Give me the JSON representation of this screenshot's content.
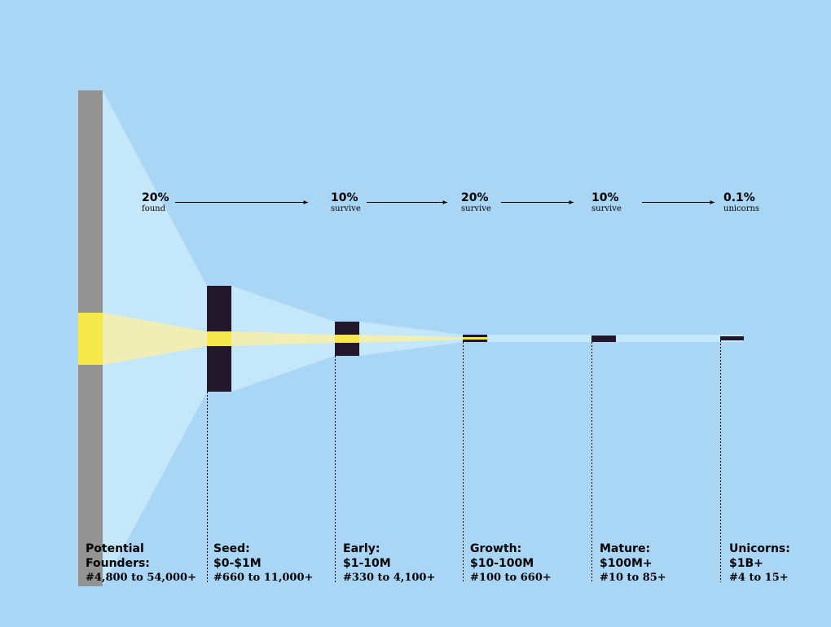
{
  "rates": [
    {
      "pct": "20%",
      "word": "found"
    },
    {
      "pct": "10%",
      "word": "survive"
    },
    {
      "pct": "20%",
      "word": "survive"
    },
    {
      "pct": "10%",
      "word": "survive"
    },
    {
      "pct": "0.1%",
      "word": "unicorns"
    }
  ],
  "stages": [
    {
      "name": "Potential",
      "range": "Founders:",
      "count": "#4,800 to 54,000+"
    },
    {
      "name": "Seed:",
      "range": "$0-$1M",
      "count": "#660 to 11,000+"
    },
    {
      "name": "Early:",
      "range": "$1-10M",
      "count": "#330 to 4,100+"
    },
    {
      "name": "Growth:",
      "range": "$10-100M",
      "count": "#100 to 660+"
    },
    {
      "name": "Mature:",
      "range": "$100M+",
      "count": "#10 to 85+"
    },
    {
      "name": "Unicorns:",
      "range": "$1B+",
      "count": "#4 to 15+"
    }
  ],
  "colors": {
    "background": "#a9d6f5",
    "funnel_light": "#c5e7fa",
    "highlight": "#f5e84a",
    "highlight_band": "#f0eeb4",
    "potential_bar": "#939393",
    "stage_bar": "#22162a"
  }
}
